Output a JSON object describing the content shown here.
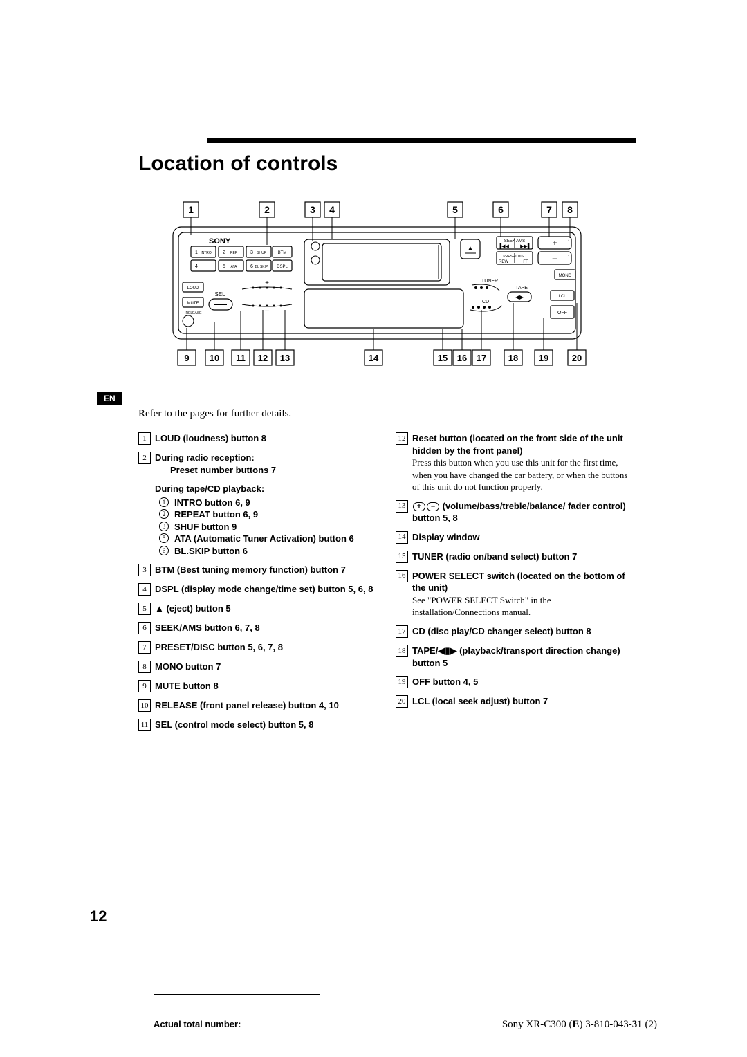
{
  "title": "Location of controls",
  "en_tab": "EN",
  "intro": "Refer to the pages for further details.",
  "diagram": {
    "top_nums": [
      "1",
      "2",
      "3",
      "4",
      "5",
      "6",
      "7",
      "8"
    ],
    "bottom_nums": [
      "9",
      "10",
      "11",
      "12",
      "13",
      "14",
      "15",
      "16",
      "17",
      "18",
      "19",
      "20"
    ],
    "brand": "SONY",
    "preset_buttons": [
      {
        "n": "1",
        "label": "INTRO"
      },
      {
        "n": "2",
        "label": "REP"
      },
      {
        "n": "3",
        "label": "SHUF"
      },
      {
        "n": "4",
        "label": ""
      },
      {
        "n": "5",
        "label": "ATA"
      },
      {
        "n": "6",
        "label": "BL SKIP"
      }
    ],
    "btm_label": "BTM",
    "dspl_label": "DSPL",
    "loud_label": "LOUD",
    "mute_label": "MUTE",
    "sel_label": "SEL",
    "release_label": "RELEASE",
    "eject_label": "▲",
    "seek_label": "SEEK AMS",
    "seek_prev": "▐◀◀",
    "seek_next": "▶▶▌",
    "preset_label": "PRESET DISC",
    "rew_label": "REW",
    "ff_label": "FF",
    "plus": "+",
    "minus": "–",
    "mono_label": "MONO",
    "tuner_label": "TUNER",
    "tape_label": "TAPE",
    "cd_label": "CD",
    "lcl_label": "LCL",
    "off_label": "OFF",
    "tape_arrows": "◀▶"
  },
  "left_col": [
    {
      "num": "1",
      "bold": "LOUD (loudness) button 8"
    },
    {
      "num": "2",
      "bold": "During radio reception:",
      "sub_bold_indent": "Preset number buttons 7",
      "extra_header": "During tape/CD playback:",
      "sub": [
        {
          "n": "1",
          "t": "INTRO button 6, 9"
        },
        {
          "n": "2",
          "t": "REPEAT button 6, 9"
        },
        {
          "n": "3",
          "t": "SHUF button 9"
        },
        {
          "n": "5",
          "t": "ATA (Automatic Tuner Activation) button 6"
        },
        {
          "n": "6",
          "t": "BL.SKIP button 6"
        }
      ]
    },
    {
      "num": "3",
      "bold": "BTM (Best tuning memory function) button 7"
    },
    {
      "num": "4",
      "bold": "DSPL (display mode change/time set) button 5, 6, 8"
    },
    {
      "num": "5",
      "bold": "▲ (eject) button 5"
    },
    {
      "num": "6",
      "bold": "SEEK/AMS button 6, 7, 8"
    },
    {
      "num": "7",
      "bold": "PRESET/DISC button 5, 6, 7, 8"
    },
    {
      "num": "8",
      "bold": "MONO button 7"
    },
    {
      "num": "9",
      "bold": "MUTE button 8"
    },
    {
      "num": "10",
      "bold": "RELEASE (front panel release) button 4, 10"
    },
    {
      "num": "11",
      "bold": "SEL (control mode select) button 5, 8"
    }
  ],
  "right_col": [
    {
      "num": "12",
      "bold": "Reset button (located on the front side of the unit hidden by the front panel)",
      "plain": "Press this button when you use this unit for the first time, when you have changed the car battery, or when the buttons of this unit do not function properly."
    },
    {
      "num": "13",
      "pm": true,
      "bold_after": " (volume/bass/treble/balance/ fader control) button 5, 8"
    },
    {
      "num": "14",
      "bold": "Display window"
    },
    {
      "num": "15",
      "bold": "TUNER (radio on/band select) button 7"
    },
    {
      "num": "16",
      "bold": "POWER SELECT switch (located on the bottom of the unit)",
      "plain": "See \"POWER SELECT Switch\" in the installation/Connections manual."
    },
    {
      "num": "17",
      "bold": "CD (disc play/CD changer select) button 8"
    },
    {
      "num": "18",
      "bold": "TAPE/◀▮▶ (playback/transport direction change) button 5"
    },
    {
      "num": "19",
      "bold": "OFF button 4, 5"
    },
    {
      "num": "20",
      "bold": "LCL (local seek adjust) button 7"
    }
  ],
  "page_number": "12",
  "footer_left": "Actual total number:",
  "footer_right_pre": "Sony XR-C300 (",
  "footer_right_bold1": "E",
  "footer_right_mid": ")  3-810-043-",
  "footer_right_bold2": "31",
  "footer_right_post": "  (2)"
}
